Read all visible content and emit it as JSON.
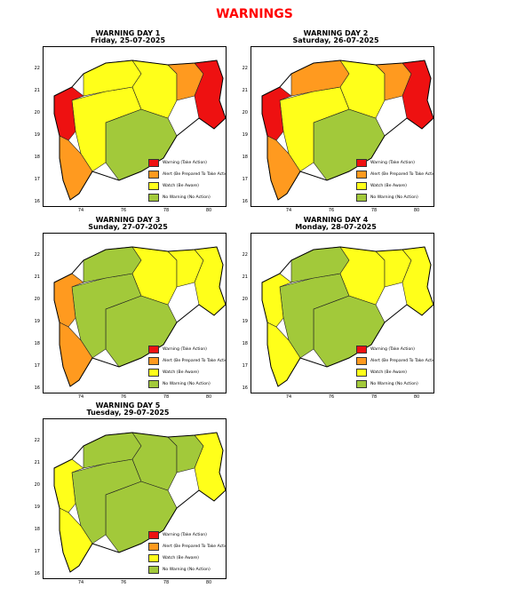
{
  "page_title": "WARNINGS",
  "colors": {
    "warning": "#ee1111",
    "alert": "#ff9a1f",
    "watch": "#ffff1a",
    "no_warning": "#a2c93a"
  },
  "legend": [
    {
      "key": "warning",
      "label": "Warning (Take Action)"
    },
    {
      "key": "alert",
      "label": "Alert (Be Prepared To Take Action)"
    },
    {
      "key": "watch",
      "label": "Watch (Be Aware)"
    },
    {
      "key": "no_warning",
      "label": "No Warning (No Action)"
    }
  ],
  "axes": {
    "yticks": [
      "22",
      "21",
      "20",
      "19",
      "18",
      "17",
      "16"
    ],
    "xticks": [
      "74",
      "76",
      "78",
      "80"
    ],
    "xlim": [
      72.5,
      81.2
    ],
    "ylim": [
      15.4,
      22.5
    ]
  },
  "panels": [
    {
      "title": "WARNING DAY 1",
      "date": "Friday, 25-07-2025",
      "zones": {
        "konkan": "warning",
        "coast_south": "alert",
        "madhya_mah": "watch",
        "marathwada": "no_warning",
        "vidarbha_west": "watch",
        "vidarbha_north": "alert",
        "vidarbha_east": "warning",
        "khandesh": "watch"
      }
    },
    {
      "title": "WARNING DAY 2",
      "date": "Saturday, 26-07-2025",
      "zones": {
        "konkan": "warning",
        "coast_south": "alert",
        "madhya_mah": "watch",
        "marathwada": "no_warning",
        "vidarbha_west": "watch",
        "vidarbha_north": "alert",
        "vidarbha_east": "warning",
        "khandesh": "alert"
      }
    },
    {
      "title": "WARNING DAY 3",
      "date": "Sunday, 27-07-2025",
      "zones": {
        "konkan": "alert",
        "coast_south": "alert",
        "madhya_mah": "no_warning",
        "marathwada": "no_warning",
        "vidarbha_west": "watch",
        "vidarbha_north": "watch",
        "vidarbha_east": "watch",
        "khandesh": "no_warning"
      }
    },
    {
      "title": "WARNING DAY 4",
      "date": "Monday, 28-07-2025",
      "zones": {
        "konkan": "watch",
        "coast_south": "watch",
        "madhya_mah": "no_warning",
        "marathwada": "no_warning",
        "vidarbha_west": "watch",
        "vidarbha_north": "watch",
        "vidarbha_east": "watch",
        "khandesh": "no_warning"
      }
    },
    {
      "title": "WARNING DAY 5",
      "date": "Tuesday, 29-07-2025",
      "zones": {
        "konkan": "watch",
        "coast_south": "watch",
        "madhya_mah": "no_warning",
        "marathwada": "no_warning",
        "vidarbha_west": "no_warning",
        "vidarbha_north": "no_warning",
        "vidarbha_east": "watch",
        "khandesh": "no_warning"
      }
    }
  ]
}
